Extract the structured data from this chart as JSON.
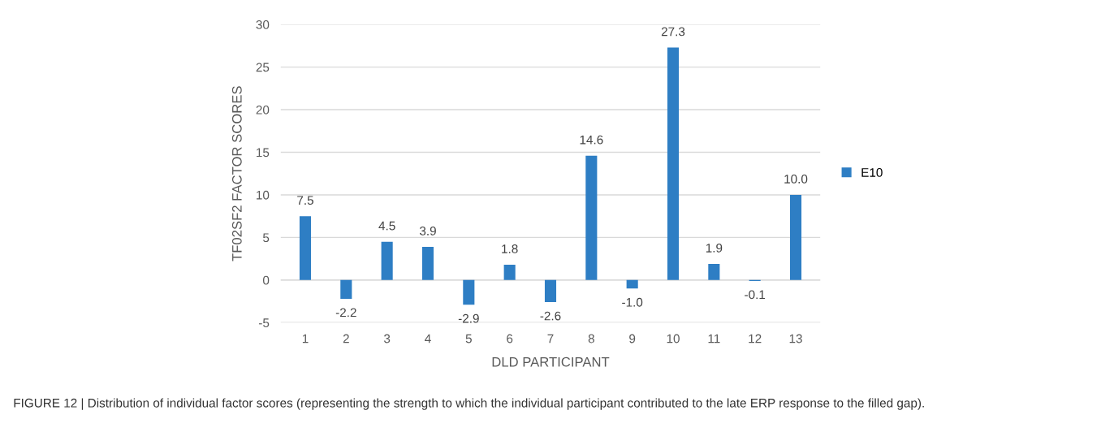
{
  "chart_data": {
    "type": "bar",
    "xlabel": "DLD PARTICIPANT",
    "ylabel": "TF02SF2 FACTOR SCORES",
    "categories": [
      "1",
      "2",
      "3",
      "4",
      "5",
      "6",
      "7",
      "8",
      "9",
      "10",
      "11",
      "12",
      "13"
    ],
    "series": [
      {
        "name": "E10",
        "color": "#2e7ec4",
        "values": [
          7.5,
          -2.2,
          4.5,
          3.9,
          -2.9,
          1.8,
          -2.6,
          14.6,
          -1.0,
          27.3,
          1.9,
          -0.1,
          10.0
        ],
        "value_labels": [
          "7.5",
          "-2.2",
          "4.5",
          "3.9",
          "-2.9",
          "1.8",
          "-2.6",
          "14.6",
          "-1.0",
          "27.3",
          "1.9",
          "-0.1",
          "10.0"
        ]
      }
    ],
    "ylim": [
      -5,
      30
    ],
    "yticks": [
      {
        "value": -5,
        "label": "-5"
      },
      0,
      5,
      10,
      15,
      20,
      25,
      30
    ],
    "grid": "y",
    "legend": "right",
    "annotations": [
      "FIGURE 12 | Distribution of individual factor scores (representing the strength to which the individual participant contributed to the late ERP response to the filled gap)."
    ]
  }
}
